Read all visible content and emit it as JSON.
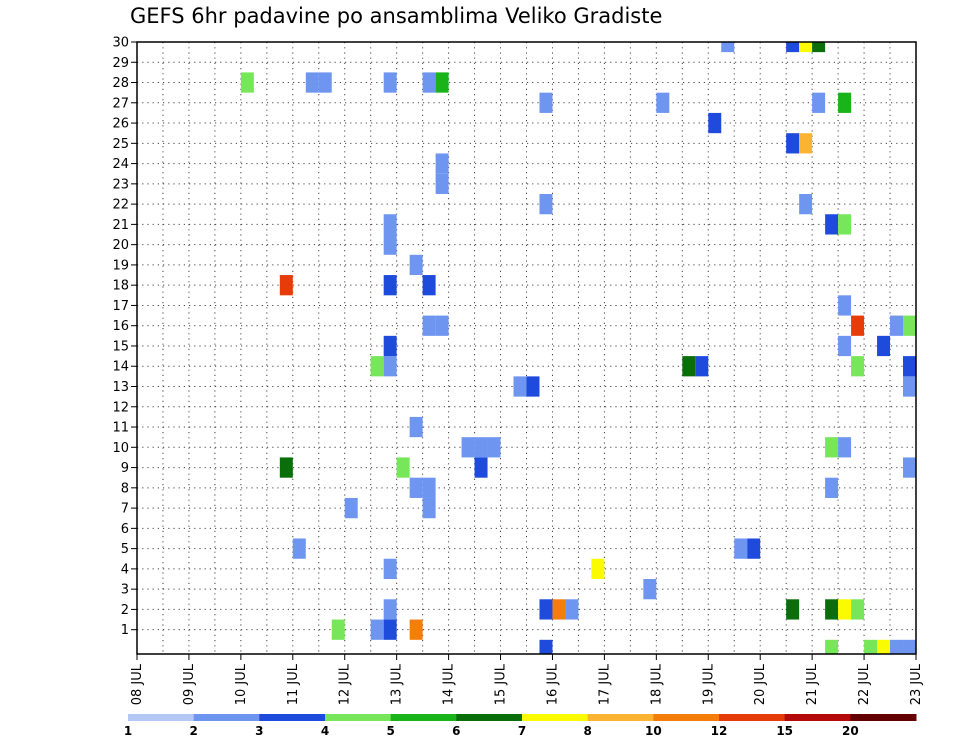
{
  "chart_data": {
    "type": "heatmap",
    "title": "GEFS 6hr padavine po ansamblima Veliko Gradiste",
    "xlabel": "",
    "ylabel": "",
    "x_tick_labels": [
      "08 JUL",
      "09 JUL",
      "10 JUL",
      "11 JUL",
      "12 JUL",
      "13 JUL",
      "14 JUL",
      "15 JUL",
      "16 JUL",
      "17 JUL",
      "18 JUL",
      "19 JUL",
      "20 JUL",
      "21 JUL",
      "22 JUL",
      "23 JUL"
    ],
    "y_tick_labels": [
      1,
      2,
      3,
      4,
      5,
      6,
      7,
      8,
      9,
      10,
      11,
      12,
      13,
      14,
      15,
      16,
      17,
      18,
      19,
      20,
      21,
      22,
      23,
      24,
      25,
      26,
      27,
      28,
      29,
      30
    ],
    "grid": true,
    "time_step_hours": 6,
    "colorbar": {
      "position": "bottom",
      "labels": [
        "1",
        "2",
        "3",
        "4",
        "5",
        "6",
        "7",
        "8",
        "10",
        "12",
        "15",
        "20"
      ],
      "colors": [
        "#b4c8f5",
        "#6e96f0",
        "#1e4bdc",
        "#78e65a",
        "#19b419",
        "#0a6e0a",
        "#fafa00",
        "#fab432",
        "#f57d0a",
        "#e63c0a",
        "#b40a0a",
        "#640000"
      ]
    },
    "series": [
      {
        "member": 0,
        "cells": [
          [
            "15 JUL 18Z",
            2
          ],
          [
            "21 JUL 06Z",
            3
          ],
          [
            "22 JUL 00Z",
            3
          ],
          [
            "22 JUL 06Z",
            6
          ],
          [
            "22 JUL 12Z",
            1
          ],
          [
            "22 JUL 18Z",
            1
          ]
        ]
      },
      {
        "member": 1,
        "cells": [
          [
            "11 JUL 18Z",
            3
          ],
          [
            "12 JUL 12Z",
            1
          ],
          [
            "12 JUL 18Z",
            2
          ],
          [
            "13 JUL 06Z",
            8
          ]
        ]
      },
      {
        "member": 2,
        "cells": [
          [
            "12 JUL 18Z",
            1
          ],
          [
            "15 JUL 18Z",
            2
          ],
          [
            "16 JUL 00Z",
            8
          ],
          [
            "16 JUL 06Z",
            1
          ],
          [
            "20 JUL 12Z",
            5
          ],
          [
            "21 JUL 06Z",
            5
          ],
          [
            "21 JUL 12Z",
            6
          ],
          [
            "21 JUL 18Z",
            3
          ]
        ]
      },
      {
        "member": 3,
        "cells": [
          [
            "17 JUL 18Z",
            1
          ]
        ]
      },
      {
        "member": 4,
        "cells": [
          [
            "12 JUL 18Z",
            1
          ],
          [
            "16 JUL 18Z",
            6
          ]
        ]
      },
      {
        "member": 5,
        "cells": [
          [
            "11 JUL 00Z",
            1
          ],
          [
            "19 JUL 12Z",
            1
          ],
          [
            "19 JUL 18Z",
            2
          ]
        ]
      },
      {
        "member": 7,
        "cells": [
          [
            "12 JUL 00Z",
            1
          ],
          [
            "13 JUL 12Z",
            1
          ]
        ]
      },
      {
        "member": 8,
        "cells": [
          [
            "13 JUL 06Z",
            1
          ],
          [
            "13 JUL 12Z",
            1
          ],
          [
            "21 JUL 06Z",
            1
          ]
        ]
      },
      {
        "member": 9,
        "cells": [
          [
            "10 JUL 18Z",
            5
          ],
          [
            "13 JUL 00Z",
            3
          ],
          [
            "14 JUL 12Z",
            2
          ],
          [
            "22 JUL 18Z",
            1
          ]
        ]
      },
      {
        "member": 10,
        "cells": [
          [
            "14 JUL 06Z",
            1
          ],
          [
            "14 JUL 12Z",
            1
          ],
          [
            "14 JUL 18Z",
            1
          ],
          [
            "21 JUL 06Z",
            3
          ],
          [
            "21 JUL 12Z",
            1
          ]
        ]
      },
      {
        "member": 11,
        "cells": [
          [
            "13 JUL 06Z",
            1
          ]
        ]
      },
      {
        "member": 13,
        "cells": [
          [
            "15 JUL 06Z",
            1
          ],
          [
            "15 JUL 12Z",
            2
          ],
          [
            "22 JUL 18Z",
            1
          ]
        ]
      },
      {
        "member": 14,
        "cells": [
          [
            "12 JUL 12Z",
            3
          ],
          [
            "12 JUL 18Z",
            1
          ],
          [
            "18 JUL 12Z",
            5
          ],
          [
            "18 JUL 18Z",
            2
          ],
          [
            "21 JUL 18Z",
            3
          ],
          [
            "22 JUL 18Z",
            2
          ]
        ]
      },
      {
        "member": 15,
        "cells": [
          [
            "12 JUL 18Z",
            2
          ],
          [
            "21 JUL 12Z",
            1
          ],
          [
            "22 JUL 06Z",
            2
          ]
        ]
      },
      {
        "member": 16,
        "cells": [
          [
            "13 JUL 12Z",
            1
          ],
          [
            "13 JUL 18Z",
            1
          ],
          [
            "21 JUL 18Z",
            9
          ],
          [
            "22 JUL 12Z",
            1
          ],
          [
            "22 JUL 18Z",
            3
          ]
        ]
      },
      {
        "member": 17,
        "cells": [
          [
            "21 JUL 12Z",
            1
          ]
        ]
      },
      {
        "member": 18,
        "cells": [
          [
            "10 JUL 18Z",
            9
          ],
          [
            "12 JUL 18Z",
            2
          ],
          [
            "13 JUL 12Z",
            2
          ]
        ]
      },
      {
        "member": 19,
        "cells": [
          [
            "13 JUL 06Z",
            1
          ]
        ]
      },
      {
        "member": 20,
        "cells": [
          [
            "12 JUL 18Z",
            1
          ]
        ]
      },
      {
        "member": 21,
        "cells": [
          [
            "12 JUL 18Z",
            1
          ],
          [
            "21 JUL 06Z",
            2
          ],
          [
            "21 JUL 12Z",
            3
          ]
        ]
      },
      {
        "member": 22,
        "cells": [
          [
            "15 JUL 18Z",
            1
          ],
          [
            "20 JUL 18Z",
            1
          ]
        ]
      },
      {
        "member": 23,
        "cells": [
          [
            "13 JUL 18Z",
            1
          ]
        ]
      },
      {
        "member": 24,
        "cells": [
          [
            "13 JUL 18Z",
            1
          ]
        ]
      },
      {
        "member": 25,
        "cells": [
          [
            "20 JUL 12Z",
            2
          ],
          [
            "20 JUL 18Z",
            7
          ]
        ]
      },
      {
        "member": 26,
        "cells": [
          [
            "19 JUL 00Z",
            2
          ]
        ]
      },
      {
        "member": 27,
        "cells": [
          [
            "15 JUL 18Z",
            1
          ],
          [
            "18 JUL 00Z",
            1
          ],
          [
            "21 JUL 00Z",
            1
          ],
          [
            "21 JUL 12Z",
            4
          ]
        ]
      },
      {
        "member": 28,
        "cells": [
          [
            "10 JUL 00Z",
            3
          ],
          [
            "11 JUL 06Z",
            1
          ],
          [
            "11 JUL 12Z",
            1
          ],
          [
            "12 JUL 18Z",
            1
          ],
          [
            "13 JUL 12Z",
            1
          ],
          [
            "13 JUL 18Z",
            4
          ]
        ]
      },
      {
        "member": 29,
        "cells": []
      },
      {
        "member": 30,
        "cells": [
          [
            "19 JUL 06Z",
            1
          ],
          [
            "20 JUL 12Z",
            2
          ],
          [
            "20 JUL 18Z",
            6
          ],
          [
            "21 JUL 00Z",
            5
          ]
        ]
      }
    ]
  }
}
